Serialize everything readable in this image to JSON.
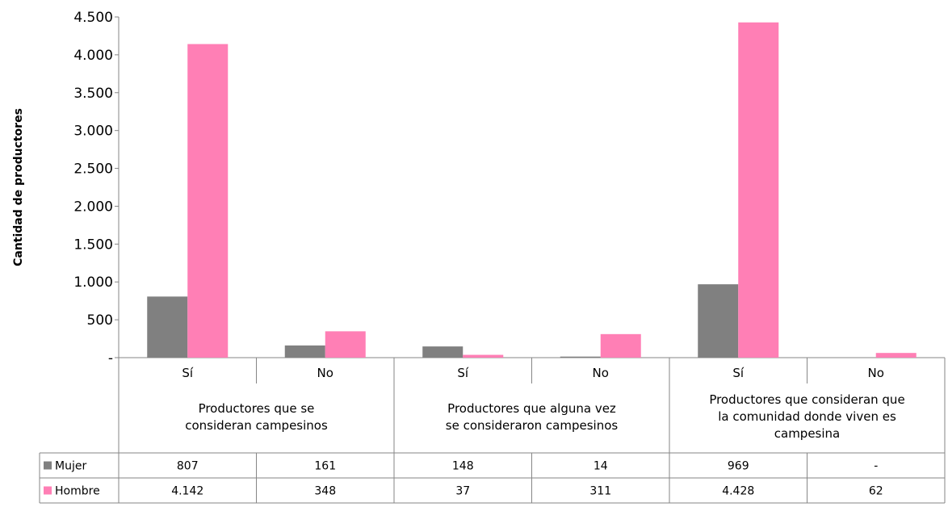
{
  "chart_data": {
    "type": "bar",
    "ylabel": "Cantidad  de productores",
    "ylim": [
      0,
      4500
    ],
    "yticks": [
      0,
      500,
      1000,
      1500,
      2000,
      2500,
      3000,
      3500,
      4000,
      4500
    ],
    "ytick_labels": [
      "-",
      "500",
      "1.000",
      "1.500",
      "2.000",
      "2.500",
      "3.000",
      "3.500",
      "4.000",
      "4.500"
    ],
    "grid": false,
    "legend": "left of data table",
    "groups": [
      {
        "label_lines": [
          "Productores que se",
          "consideran campesinos"
        ],
        "categories": [
          "Sí",
          "No"
        ]
      },
      {
        "label_lines": [
          "Productores que alguna vez",
          "se consideraron campesinos"
        ],
        "categories": [
          "Sí",
          "No"
        ]
      },
      {
        "label_lines": [
          "Productores que consideran que",
          "la comunidad donde viven es",
          "campesina"
        ],
        "categories": [
          "Sí",
          "No"
        ]
      }
    ],
    "categories": [
      "Sí",
      "No",
      "Sí",
      "No",
      "Sí",
      "No"
    ],
    "series": [
      {
        "name": "Mujer",
        "color": "#808080",
        "values": [
          807,
          161,
          148,
          14,
          969,
          0
        ],
        "value_labels": [
          "807",
          "161",
          "148",
          "14",
          "969",
          "-"
        ]
      },
      {
        "name": "Hombre",
        "color": "#ff7fb5",
        "values": [
          4142,
          348,
          37,
          311,
          4428,
          62
        ],
        "value_labels": [
          "4.142",
          "348",
          "37",
          "311",
          "4.428",
          "62"
        ]
      }
    ]
  }
}
